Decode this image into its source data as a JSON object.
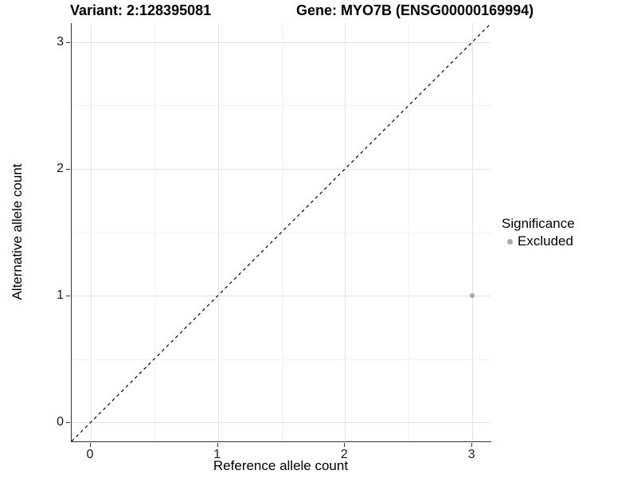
{
  "header": {
    "title_left": "Variant: 2:128395081",
    "title_right": "Gene: MYO7B (ENSG00000169994)"
  },
  "chart_data": {
    "type": "scatter",
    "xlabel": "Reference allele count",
    "ylabel": "Alternative allele count",
    "xlim": [
      -0.15,
      3.15
    ],
    "ylim": [
      -0.15,
      3.15
    ],
    "x_ticks": [
      0,
      1,
      2,
      3
    ],
    "y_ticks": [
      0,
      1,
      2,
      3
    ],
    "x_minor_ticks": [
      0.5,
      1.5,
      2.5
    ],
    "y_minor_ticks": [
      0.5,
      1.5,
      2.5
    ],
    "grid": "major+minor",
    "reference_line": {
      "slope": 1,
      "intercept": 0,
      "style": "dashed",
      "color": "#000000"
    },
    "series": [
      {
        "name": "Excluded",
        "color": "#a8a8a8",
        "points": [
          {
            "x": 3,
            "y": 1
          }
        ]
      }
    ],
    "legend": {
      "title": "Significance",
      "position": "right",
      "entries": [
        {
          "label": "Excluded",
          "color": "#a8a8a8",
          "marker": "circle"
        }
      ]
    }
  },
  "colors": {
    "background": "#ffffff",
    "axis_line": "#333333",
    "tick_label": "#1a1a1a",
    "grid_major": "#e3e3e3",
    "grid_minor": "#f2f2f2"
  }
}
